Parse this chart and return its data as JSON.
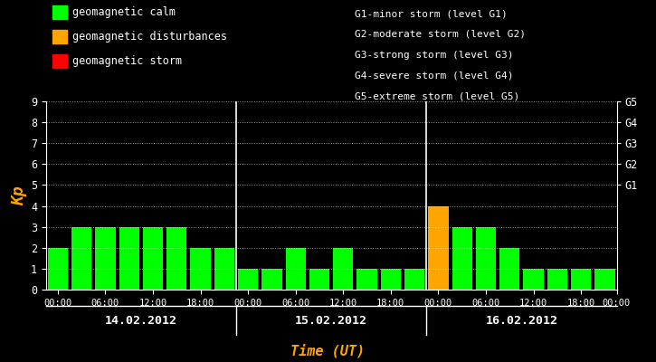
{
  "background_color": "#000000",
  "plot_bg_color": "#000000",
  "text_color": "#ffffff",
  "orange_color": "#FFA500",
  "green_color": "#00FF00",
  "red_color": "#FF0000",
  "grid_color": "#ffffff",
  "days": [
    "14.02.2012",
    "15.02.2012",
    "16.02.2012"
  ],
  "bars_day1": [
    2,
    3,
    3,
    3,
    3,
    3,
    2,
    2
  ],
  "bars_day2": [
    1,
    1,
    2,
    1,
    2,
    1,
    1,
    1
  ],
  "bars_day3": [
    4,
    3,
    3,
    2,
    1,
    1,
    1,
    1
  ],
  "bar_colors_day1": [
    "#00FF00",
    "#00FF00",
    "#00FF00",
    "#00FF00",
    "#00FF00",
    "#00FF00",
    "#00FF00",
    "#00FF00"
  ],
  "bar_colors_day2": [
    "#00FF00",
    "#00FF00",
    "#00FF00",
    "#00FF00",
    "#00FF00",
    "#00FF00",
    "#00FF00",
    "#00FF00"
  ],
  "bar_colors_day3": [
    "#FFA500",
    "#00FF00",
    "#00FF00",
    "#00FF00",
    "#00FF00",
    "#00FF00",
    "#00FF00",
    "#00FF00"
  ],
  "ylim": [
    0,
    9
  ],
  "yticks": [
    0,
    1,
    2,
    3,
    4,
    5,
    6,
    7,
    8,
    9
  ],
  "left_ylabel": "Kp",
  "xlabel": "Time (UT)",
  "legend_left": [
    {
      "color": "#00FF00",
      "label": "geomagnetic calm"
    },
    {
      "color": "#FFA500",
      "label": "geomagnetic disturbances"
    },
    {
      "color": "#FF0000",
      "label": "geomagnetic storm"
    }
  ],
  "legend_right_text": [
    "G1-minor storm (level G1)",
    "G2-moderate storm (level G2)",
    "G3-strong storm (level G3)",
    "G4-severe storm (level G4)",
    "G5-extreme storm (level G5)"
  ],
  "xtick_labels": [
    "00:00",
    "06:00",
    "12:00",
    "18:00",
    "00:00",
    "06:00",
    "12:00",
    "18:00",
    "00:00",
    "06:00",
    "12:00",
    "18:00",
    "00:00"
  ],
  "dividers": [
    8,
    16
  ],
  "bar_width": 0.85,
  "monospace_font": "monospace"
}
